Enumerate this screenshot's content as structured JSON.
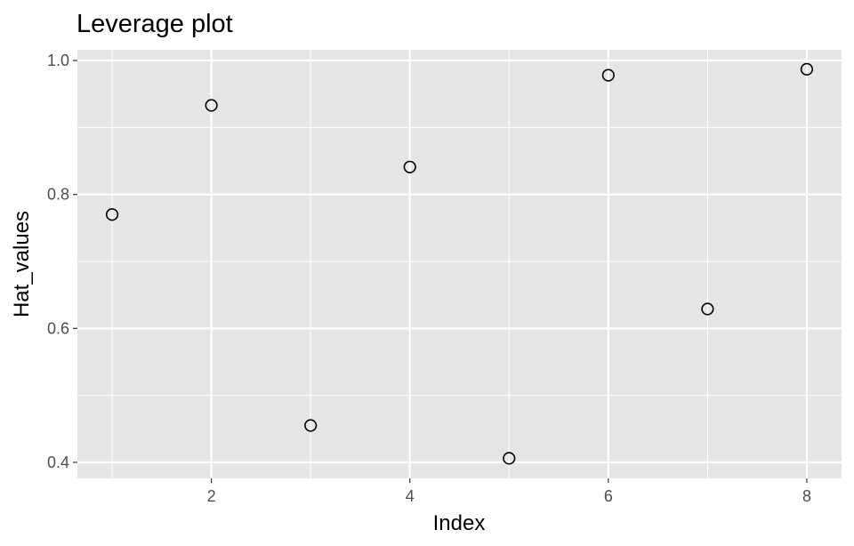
{
  "chart_data": {
    "type": "scatter",
    "title": "Leverage plot",
    "xlabel": "Index",
    "ylabel": "Hat_values",
    "x": [
      1,
      2,
      3,
      4,
      5,
      6,
      7,
      8
    ],
    "y": [
      0.77,
      0.933,
      0.455,
      0.841,
      0.406,
      0.978,
      0.629,
      0.987
    ],
    "xlim": [
      0.65,
      8.35
    ],
    "ylim": [
      0.376,
      1.016
    ],
    "x_ticks": [
      2,
      4,
      6,
      8
    ],
    "x_tick_labels": [
      "2",
      "4",
      "6",
      "8"
    ],
    "x_minor_ticks": [
      1,
      3,
      5,
      7
    ],
    "y_ticks": [
      0.4,
      0.6,
      0.8,
      1.0
    ],
    "y_tick_labels": [
      "0.4",
      "0.6",
      "0.8",
      "1.0"
    ],
    "y_minor_ticks": [
      0.5,
      0.7,
      0.9
    ],
    "grid": true,
    "legend": "none",
    "colors": {
      "panel_background": "#e5e5e5",
      "grid_line": "#ffffff",
      "point_stroke": "#000000",
      "tick_mark": "#333333",
      "tick_label": "#4d4d4d"
    },
    "marker": "open-circle"
  }
}
